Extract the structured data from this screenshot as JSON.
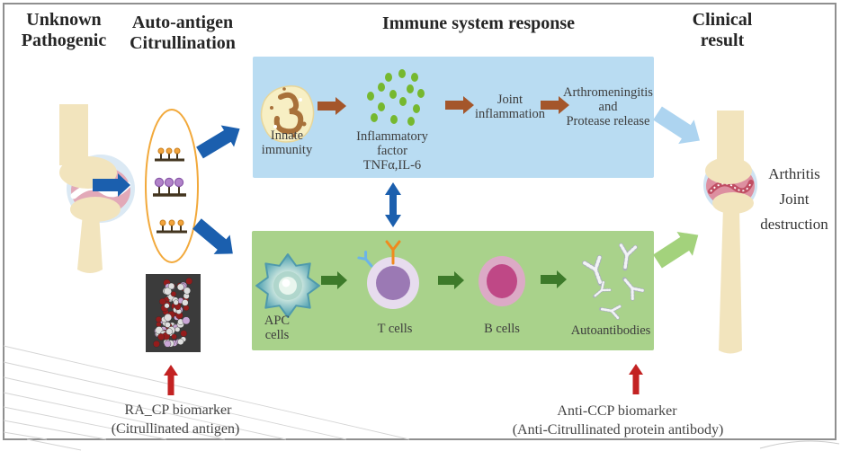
{
  "headers": {
    "unknown_pathogenic": "Unknown\nPathogenic",
    "auto_antigen": "Auto-antigen\nCitrullination",
    "immune_response": "Immune system response",
    "clinical_result": "Clinical\nresult"
  },
  "innate_pathway": {
    "innate_immunity": "Innate\nimmunity",
    "inflammatory_factor": "Inflammatory\nfactor\nTNFα,IL-6",
    "joint_inflammation": "Joint\ninflammation",
    "outcome": "Arthromeningitis\nand\nProtease release"
  },
  "adaptive_pathway": {
    "apc_cells": "APC\ncells",
    "t_cells": "T cells",
    "b_cells": "B cells",
    "autoantibodies": "Autoantibodies"
  },
  "clinical": {
    "result": "Arthritis\nJoint\ndestruction"
  },
  "biomarkers": {
    "ra_cp_title": "RA_CP biomarker",
    "ra_cp_sub": "(Citrullinated antigen)",
    "anti_ccp_title": "Anti-CCP biomarker",
    "anti_ccp_sub": "(Anti-Citrullinated protein antibody)"
  },
  "colors": {
    "innate_box": "#b9dcf2",
    "adaptive_box": "#a9d28b",
    "dark_blue_arrow": "#1b5fae",
    "brown_arrow": "#a4562b",
    "dark_green_arrow": "#3d7a2a",
    "light_blue_arrow": "#add4f0",
    "light_green_arrow": "#a3d27c",
    "red_arrow": "#c32222",
    "ellipse_stroke": "#f2a93b"
  }
}
